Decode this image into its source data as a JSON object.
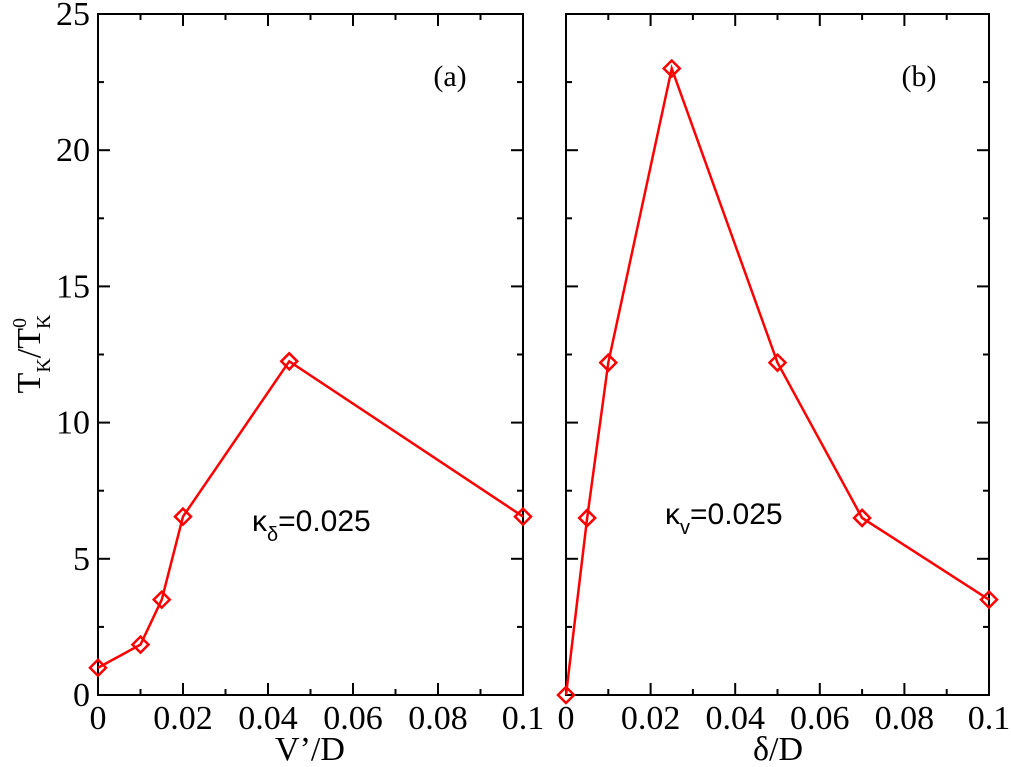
{
  "chart_data": [
    {
      "type": "line",
      "panel_label": "(a)",
      "xlabel": "V’/D",
      "ylabel_main": "T",
      "ylabel_sub": "K",
      "ylabel_sep": "/T",
      "ylabel_sup": "0",
      "ylabel_sub2": "K",
      "xlim": [
        0,
        0.1
      ],
      "ylim": [
        0,
        25
      ],
      "x_ticks": [
        "0",
        "0.02",
        "0.04",
        "0.06",
        "0.08",
        "0.1"
      ],
      "y_ticks": [
        "0",
        "5",
        "10",
        "15",
        "20",
        "25"
      ],
      "annotation": {
        "symbol": "κ",
        "sub": "δ",
        "text": "=0.025"
      },
      "color": "#ff0000",
      "marker": "diamond",
      "x": [
        0,
        0.01,
        0.015,
        0.02,
        0.045,
        0.1
      ],
      "y": [
        1.0,
        1.85,
        3.5,
        6.55,
        12.25,
        6.55
      ]
    },
    {
      "type": "line",
      "panel_label": "(b)",
      "xlabel": "δ/D",
      "xlim": [
        0,
        0.1
      ],
      "ylim": [
        0,
        25
      ],
      "x_ticks": [
        "0",
        "0.02",
        "0.04",
        "0.06",
        "0.08",
        "0.1"
      ],
      "annotation": {
        "symbol": "κ",
        "sub": "v",
        "text": "=0.025"
      },
      "color": "#ff0000",
      "marker": "diamond",
      "x": [
        0,
        0.005,
        0.01,
        0.025,
        0.05,
        0.07,
        0.1
      ],
      "y": [
        0,
        6.5,
        12.2,
        23.0,
        12.2,
        6.5,
        3.5
      ]
    }
  ]
}
